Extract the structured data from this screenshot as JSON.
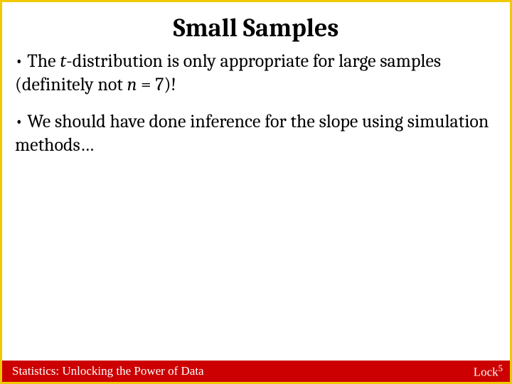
{
  "border_color": "#f2c900",
  "background_color": "#ffffff",
  "title": {
    "text": "Small Samples",
    "fontsize": 36,
    "color": "#000000"
  },
  "bullets": [
    {
      "parts": [
        {
          "text": "• The ",
          "italic": false
        },
        {
          "text": "t",
          "italic": true
        },
        {
          "text": "-distribution is only appropriate for large samples (definitely not ",
          "italic": false
        },
        {
          "text": "n",
          "italic": true
        },
        {
          "text": " = 7)!",
          "italic": false
        }
      ]
    },
    {
      "parts": [
        {
          "text": "• We should have done inference for the slope using simulation methods…",
          "italic": false
        }
      ]
    }
  ],
  "body_fontsize": 26,
  "body_color": "#000000",
  "footer": {
    "background": "#cc0000",
    "text_color": "#ffffff",
    "left": "Statistics: Unlocking the Power of Data",
    "right_base": "Lock",
    "right_sup": "5",
    "fontsize": 17
  }
}
